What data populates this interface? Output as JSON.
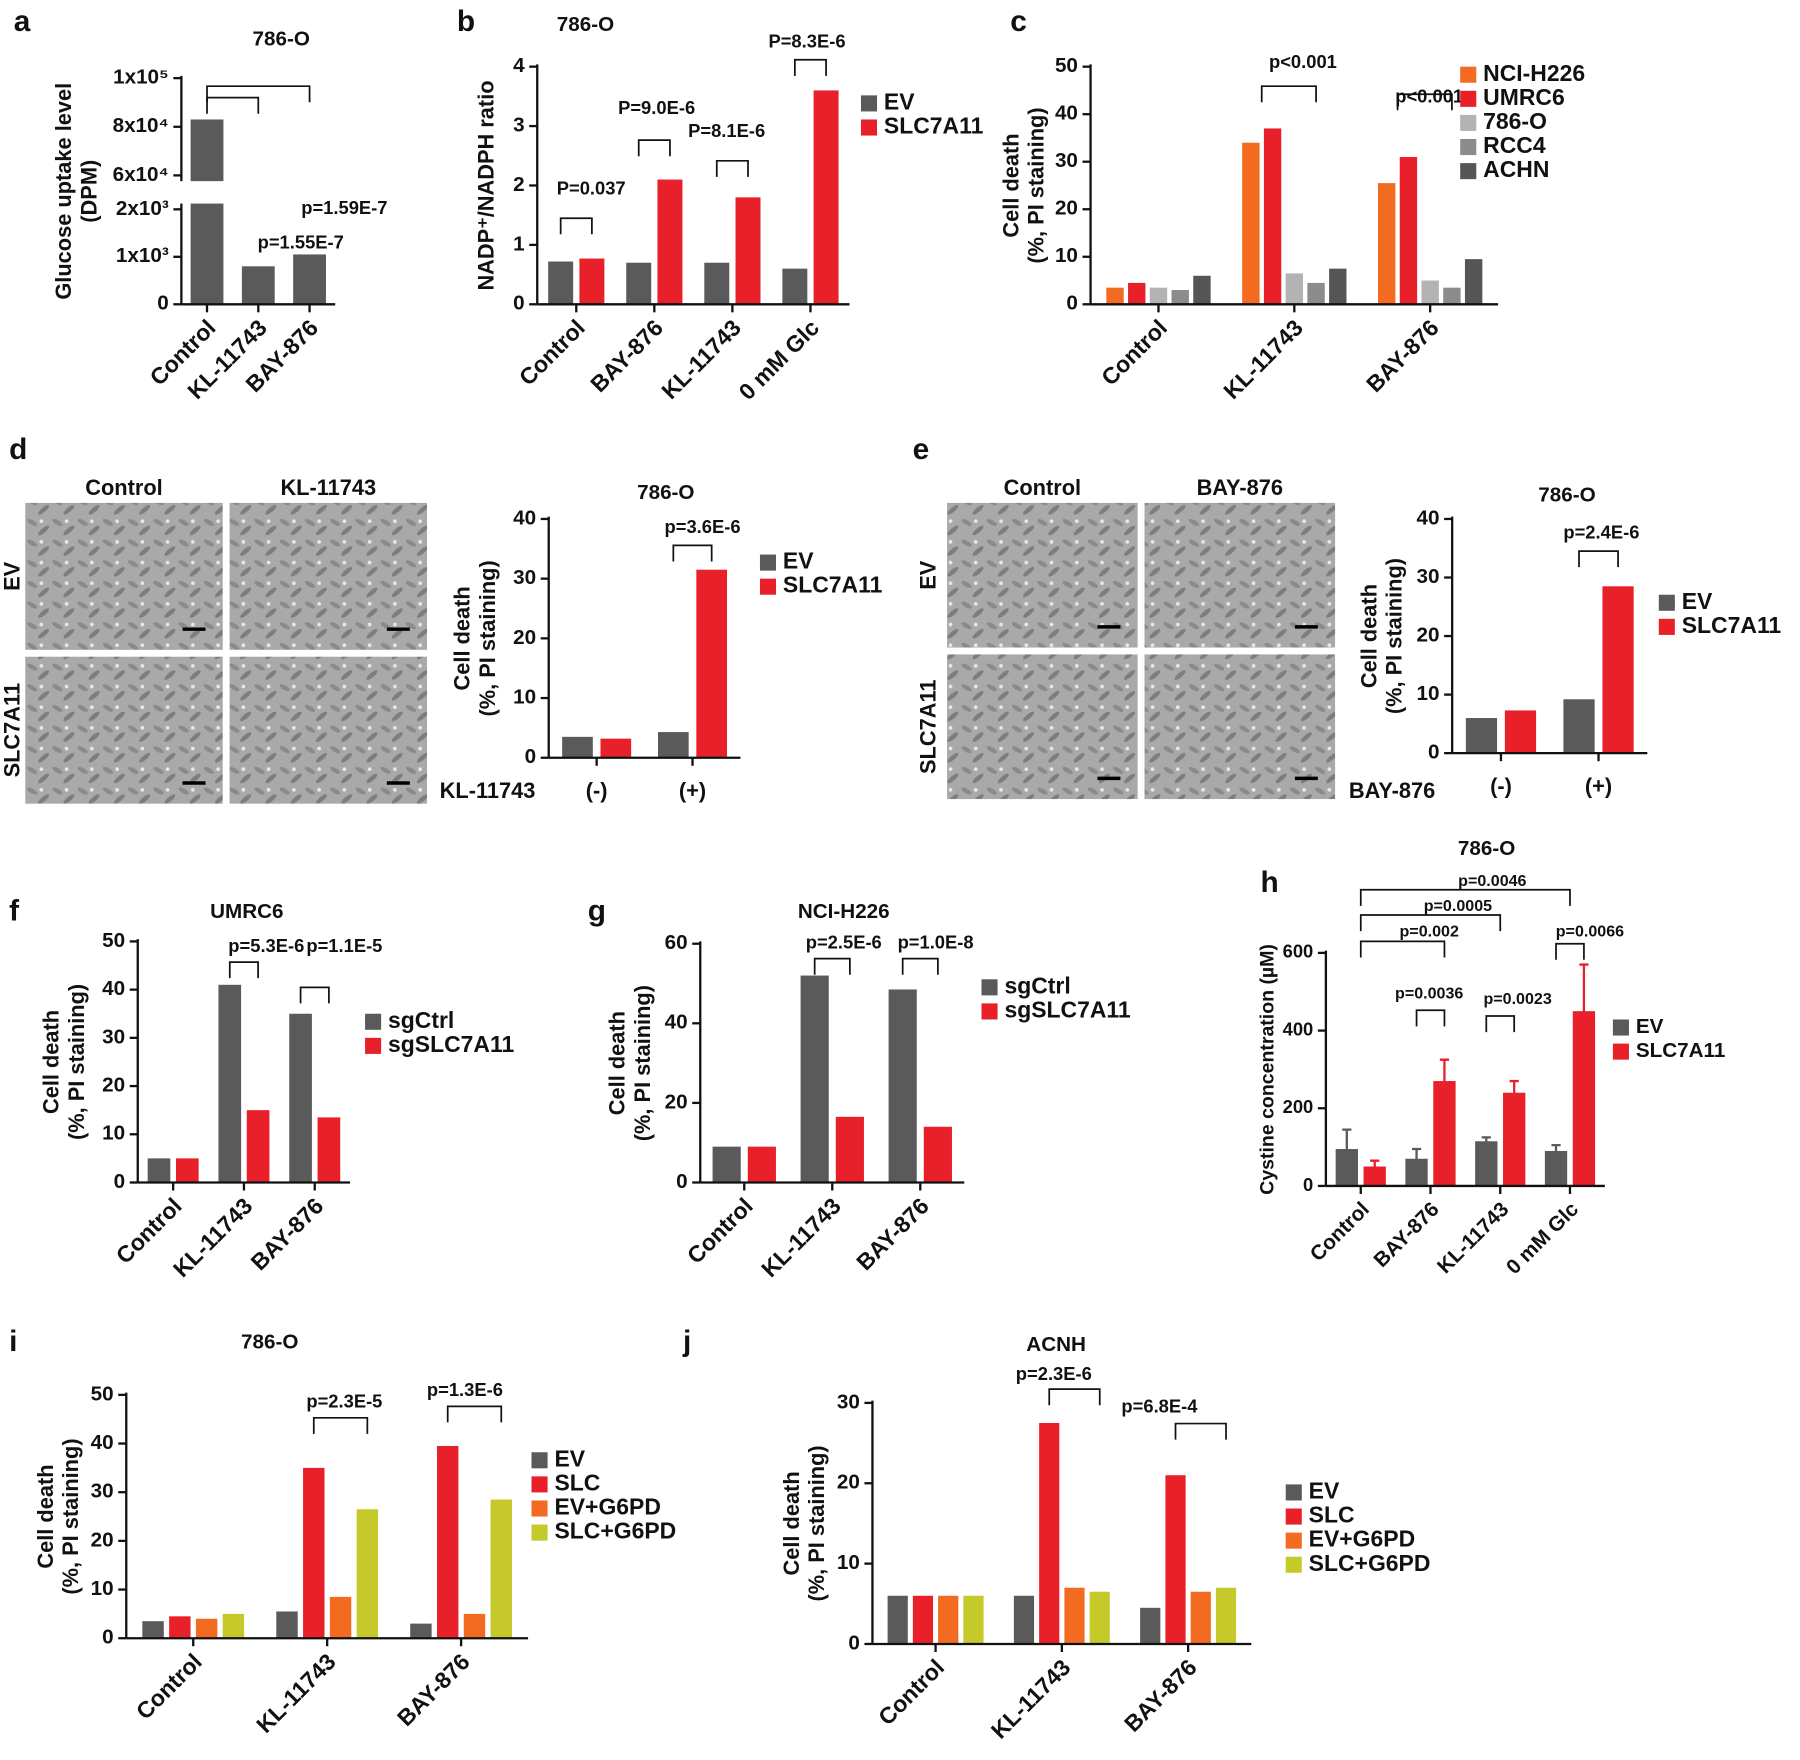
{
  "chart_data": [
    {
      "panel": "a",
      "type": "bar",
      "title": "786-O",
      "ylabel": [
        "Glucose uptake level",
        "(DPM)"
      ],
      "categories": [
        "Control",
        "KL-11743",
        "BAY-876"
      ],
      "values": [
        83000,
        800,
        1050
      ],
      "color": "#5a5a5a",
      "ylim": [
        0,
        100000
      ],
      "ybreak": [
        2000,
        60000
      ],
      "yticks": [
        0,
        {
          "value": 1000,
          "label": "1x10³"
        },
        {
          "value": 2000,
          "label": "2x10³"
        },
        {
          "value": 60000,
          "label": "6x10⁴"
        },
        {
          "value": 80000,
          "label": "8x10⁴"
        },
        {
          "value": 100000,
          "label": "1x10⁵"
        }
      ],
      "annotations": [
        "p=1.55E-7",
        "p=1.59E-7"
      ]
    },
    {
      "panel": "b",
      "type": "bar",
      "title": "786-O",
      "ylabel": [
        "NADP⁺/NADPH ratio"
      ],
      "categories": [
        "Control",
        "BAY-876",
        "KL-11743",
        "0 mM Glc"
      ],
      "series": [
        {
          "name": "EV",
          "color": "#5a5a5a",
          "values": [
            0.72,
            0.7,
            0.7,
            0.6
          ]
        },
        {
          "name": "SLC7A11",
          "color": "#e8202a",
          "values": [
            0.77,
            2.1,
            1.8,
            3.6
          ]
        }
      ],
      "ylim": [
        0,
        4
      ],
      "yticks": [
        0,
        1,
        2,
        3,
        4
      ],
      "annotations": [
        "P=0.037",
        "P=9.0E-6",
        "P=8.1E-6",
        "P=8.3E-6"
      ]
    },
    {
      "panel": "c",
      "type": "bar",
      "ylabel": [
        "Cell death",
        "(%, PI staining)"
      ],
      "categories": [
        "Control",
        "KL-11743",
        "BAY-876"
      ],
      "series": [
        {
          "name": "NCI-H226",
          "color": "#f26b21",
          "values": [
            3.5,
            34,
            25.5
          ]
        },
        {
          "name": "UMRC6",
          "color": "#e8202a",
          "values": [
            4.5,
            37,
            31
          ]
        },
        {
          "name": "786-O",
          "color": "#b3b3b3",
          "values": [
            3.5,
            6.5,
            5
          ]
        },
        {
          "name": "RCC4",
          "color": "#8c8c8c",
          "values": [
            3,
            4.5,
            3.5
          ]
        },
        {
          "name": "ACHN",
          "color": "#555555",
          "values": [
            6,
            7.5,
            9.5
          ]
        }
      ],
      "ylim": [
        0,
        50
      ],
      "yticks": [
        0,
        10,
        20,
        30,
        40,
        50
      ],
      "annotations": [
        "p<0.001",
        "p<0.001"
      ]
    },
    {
      "panel": "d",
      "type": "bar",
      "title": "786-O",
      "ylabel": [
        "Cell death",
        "(%, PI staining)"
      ],
      "xlabel": "KL-11743",
      "categories": [
        "(-)",
        "(+)"
      ],
      "series": [
        {
          "name": "EV",
          "color": "#5a5a5a",
          "values": [
            3.5,
            4.3
          ]
        },
        {
          "name": "SLC7A11",
          "color": "#e8202a",
          "values": [
            3.2,
            31.5
          ]
        }
      ],
      "ylim": [
        0,
        40
      ],
      "yticks": [
        0,
        10,
        20,
        30,
        40
      ],
      "annotations": [
        "p=3.6E-6"
      ]
    },
    {
      "panel": "e",
      "type": "bar",
      "title": "786-O",
      "ylabel": [
        "Cell death",
        "(%, PI staining)"
      ],
      "xlabel": "BAY-876",
      "categories": [
        "(-)",
        "(+)"
      ],
      "series": [
        {
          "name": "EV",
          "color": "#5a5a5a",
          "values": [
            6,
            9.2
          ]
        },
        {
          "name": "SLC7A11",
          "color": "#e8202a",
          "values": [
            7.3,
            28.5
          ]
        }
      ],
      "ylim": [
        0,
        40
      ],
      "yticks": [
        0,
        10,
        20,
        30,
        40
      ],
      "annotations": [
        "p=2.4E-6"
      ]
    },
    {
      "panel": "f",
      "type": "bar",
      "title": "UMRC6",
      "ylabel": [
        "Cell death",
        "(%, PI staining)"
      ],
      "categories": [
        "Control",
        "KL-11743",
        "BAY-876"
      ],
      "series": [
        {
          "name": "sgCtrl",
          "color": "#5a5a5a",
          "values": [
            5,
            41,
            35
          ]
        },
        {
          "name": "sgSLC7A11",
          "color": "#e8202a",
          "values": [
            5,
            15,
            13.5
          ]
        }
      ],
      "ylim": [
        0,
        50
      ],
      "yticks": [
        0,
        10,
        20,
        30,
        40,
        50
      ],
      "annotations": [
        "p=5.3E-6",
        "p=1.1E-5"
      ]
    },
    {
      "panel": "g",
      "type": "bar",
      "title": "NCI-H226",
      "ylabel": [
        "Cell death",
        "(%, PI staining)"
      ],
      "categories": [
        "Control",
        "KL-11743",
        "BAY-876"
      ],
      "series": [
        {
          "name": "sgCtrl",
          "color": "#5a5a5a",
          "values": [
            9,
            52,
            48.5
          ]
        },
        {
          "name": "sgSLC7A11",
          "color": "#e8202a",
          "values": [
            9,
            16.5,
            14
          ]
        }
      ],
      "ylim": [
        0,
        60
      ],
      "yticks": [
        0,
        20,
        40,
        60
      ],
      "annotations": [
        "p=2.5E-6",
        "p=1.0E-8"
      ]
    },
    {
      "panel": "h",
      "type": "bar",
      "title": "786-O",
      "ylabel": [
        "Cystine concentration (µM)"
      ],
      "categories": [
        "Control",
        "BAY-876",
        "KL-11743",
        "0 mM Glc"
      ],
      "series": [
        {
          "name": "EV",
          "color": "#5a5a5a",
          "values": [
            95,
            70,
            115,
            90
          ],
          "errors": [
            50,
            25,
            10,
            15
          ]
        },
        {
          "name": "SLC7A11",
          "color": "#e8202a",
          "values": [
            50,
            270,
            240,
            450
          ],
          "errors": [
            15,
            55,
            30,
            120
          ]
        }
      ],
      "ylim": [
        0,
        600
      ],
      "yticks": [
        0,
        200,
        400,
        600
      ],
      "annotations": [
        "p=0.0046",
        "p=0.0005",
        "p=0.002",
        "p=0.0066",
        "p=0.0036",
        "p=0.0023"
      ]
    },
    {
      "panel": "i",
      "type": "bar",
      "title": "786-O",
      "ylabel": [
        "Cell death",
        "(%, PI staining)"
      ],
      "categories": [
        "Control",
        "KL-11743",
        "BAY-876"
      ],
      "series": [
        {
          "name": "EV",
          "color": "#5a5a5a",
          "values": [
            3.5,
            5.5,
            3
          ]
        },
        {
          "name": "SLC",
          "color": "#e8202a",
          "values": [
            4.5,
            35,
            39.5
          ]
        },
        {
          "name": "EV+G6PD",
          "color": "#f26b21",
          "values": [
            4,
            8.5,
            5
          ]
        },
        {
          "name": "SLC+G6PD",
          "color": "#c5c92a",
          "values": [
            5,
            26.5,
            28.5
          ]
        }
      ],
      "ylim": [
        0,
        50
      ],
      "yticks": [
        0,
        10,
        20,
        30,
        40,
        50
      ],
      "annotations": [
        "p=2.3E-5",
        "p=1.3E-6"
      ]
    },
    {
      "panel": "j",
      "type": "bar",
      "title": "ACNH",
      "ylabel": [
        "Cell death",
        "(%, PI staining)"
      ],
      "categories": [
        "Control",
        "KL-11743",
        "BAY-876"
      ],
      "series": [
        {
          "name": "EV",
          "color": "#5a5a5a",
          "values": [
            6,
            6,
            4.5
          ]
        },
        {
          "name": "SLC",
          "color": "#e8202a",
          "values": [
            6,
            27.5,
            21
          ]
        },
        {
          "name": "EV+G6PD",
          "color": "#f26b21",
          "values": [
            6,
            7,
            6.5
          ]
        },
        {
          "name": "SLC+G6PD",
          "color": "#c5c92a",
          "values": [
            6,
            6.5,
            7
          ]
        }
      ],
      "ylim": [
        0,
        30
      ],
      "yticks": [
        0,
        10,
        20,
        30
      ],
      "annotations": [
        "p=2.3E-6",
        "p=6.8E-4"
      ]
    }
  ],
  "images": [
    {
      "columns": [
        "Control",
        "KL-11743"
      ],
      "rows": [
        "EV",
        "SLC7A11"
      ]
    },
    {
      "columns": [
        "Control",
        "BAY-876"
      ],
      "rows": [
        "EV",
        "SLC7A11"
      ]
    }
  ]
}
